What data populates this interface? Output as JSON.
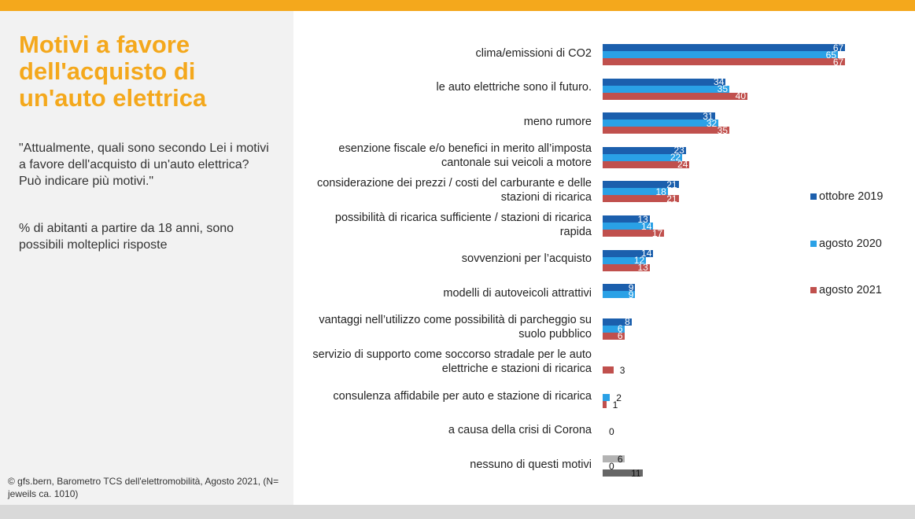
{
  "header": {
    "title": "Motivi a favore dell'acquisto di un'auto elettrica",
    "question": "\"Attualmente, quali sono secondo Lei i motivi a favore dell'acquisto di un'auto elettrica? Può indicare più motivi.\"",
    "note": "% di abitanti a partire da 18 anni, sono possibili molteplici risposte"
  },
  "footer": {
    "source": "© gfs.bern, Barometro TCS dell'elettromobilità, Agosto 2021, (N= jeweils ca. 1010)"
  },
  "colors": {
    "accent": "#f4a81c",
    "series_2019": "#1b5fad",
    "series_2020": "#2aa1e6",
    "series_2021": "#c0504d",
    "neutral_2019": "#b3b3b3",
    "neutral_2020": "#8c8c8c",
    "neutral_2021": "#666666"
  },
  "chart_data": {
    "type": "bar",
    "orientation": "horizontal",
    "title": "Motivi a favore dell'acquisto di un'auto elettrica",
    "xlabel": "",
    "ylabel": "",
    "xlim": [
      0,
      70
    ],
    "grid": false,
    "legend_position": "right",
    "categories": [
      "clima/emissioni di CO2",
      "le auto elettriche sono il futuro.",
      "meno rumore",
      "esenzione fiscale e/o benefici in merito all’imposta cantonale sui veicoli a motore",
      "considerazione dei prezzi / costi del carburante e delle stazioni di ricarica",
      "possibilità di ricarica sufficiente / stazioni di ricarica rapida",
      "sovvenzioni per l’acquisto",
      "modelli di autoveicoli attrattivi",
      "vantaggi nell’utilizzo come possibilità di parcheggio su suolo pubblico",
      "servizio di supporto come soccorso stradale per le auto elettriche e stazioni di ricarica",
      "consulenza affidabile per auto e stazione di ricarica",
      "a causa della crisi di Corona",
      "nessuno di questi motivi"
    ],
    "category_lines": [
      [
        "clima/emissioni di CO2"
      ],
      [
        "le auto elettriche sono il futuro."
      ],
      [
        "meno rumore"
      ],
      [
        "esenzione fiscale e/o benefici in merito all’imposta",
        "cantonale sui veicoli a motore"
      ],
      [
        "considerazione dei prezzi / costi del carburante e delle",
        "stazioni di ricarica"
      ],
      [
        "possibilità di ricarica sufficiente / stazioni di ricarica",
        "rapida"
      ],
      [
        "sovvenzioni per l’acquisto"
      ],
      [
        "modelli di autoveicoli attrattivi"
      ],
      [
        "vantaggi nell’utilizzo come possibilità di parcheggio su",
        "suolo pubblico"
      ],
      [
        "servizio di supporto come soccorso stradale per le auto",
        "elettriche e stazioni di ricarica"
      ],
      [
        "consulenza affidabile per auto e stazione di ricarica"
      ],
      [
        "a causa della crisi di Corona"
      ],
      [
        "nessuno di questi motivi"
      ]
    ],
    "series": [
      {
        "name": "ottobre 2019",
        "values": [
          67,
          34,
          31,
          23,
          21,
          13,
          14,
          9,
          8,
          null,
          null,
          null,
          6
        ]
      },
      {
        "name": "agosto 2020",
        "values": [
          65,
          35,
          32,
          22,
          18,
          14,
          12,
          9,
          6,
          null,
          2,
          0,
          0
        ]
      },
      {
        "name": "agosto 2021",
        "values": [
          67,
          40,
          35,
          24,
          21,
          17,
          13,
          null,
          6,
          3,
          1,
          null,
          11
        ]
      }
    ]
  }
}
